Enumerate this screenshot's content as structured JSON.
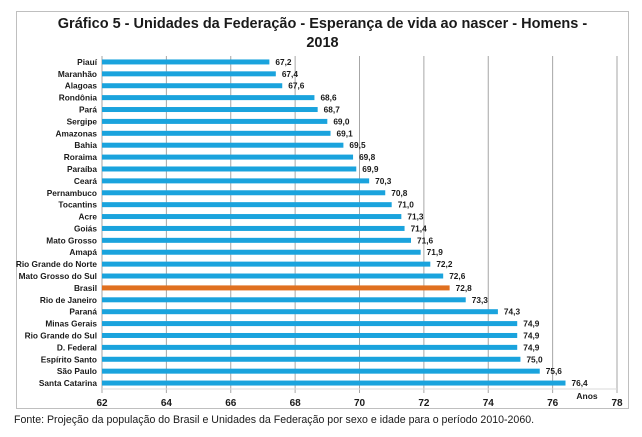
{
  "chart_data": {
    "type": "bar",
    "orientation": "horizontal",
    "title": "Gráfico 5 - Unidades da Federação - Esperança de vida ao nascer - Homens - 2018",
    "title_lines": [
      "Gráfico 5 - Unidades da Federação - Esperança de vida ao nascer - Homens -",
      "2018"
    ],
    "xlabel": "Anos",
    "ylabel": "",
    "xlim": [
      62,
      78
    ],
    "xticks": [
      62,
      64,
      66,
      68,
      70,
      72,
      74,
      76,
      78
    ],
    "xtick_labels": [
      "62",
      "64",
      "66",
      "68",
      "70",
      "72",
      "74",
      "76",
      "78"
    ],
    "grid": "vertical",
    "legend": "none",
    "categories": [
      "Piauí",
      "Maranhão",
      "Alagoas",
      "Rondônia",
      "Pará",
      "Sergipe",
      "Amazonas",
      "Bahia",
      "Roraima",
      "Paraíba",
      "Ceará",
      "Pernambuco",
      "Tocantins",
      "Acre",
      "Goiás",
      "Mato Grosso",
      "Amapá",
      "Rio Grande do Norte",
      "Mato Grosso do Sul",
      "Brasil",
      "Rio de Janeiro",
      "Paraná",
      "Minas Gerais",
      "Rio Grande do Sul",
      "D. Federal",
      "Espírito Santo",
      "São Paulo",
      "Santa Catarina"
    ],
    "values": [
      67.2,
      67.4,
      67.6,
      68.6,
      68.7,
      69.0,
      69.1,
      69.5,
      69.8,
      69.9,
      70.3,
      70.8,
      71.0,
      71.3,
      71.4,
      71.6,
      71.9,
      72.2,
      72.6,
      72.8,
      73.3,
      74.3,
      74.9,
      74.9,
      74.9,
      75.0,
      75.6,
      76.4
    ],
    "value_labels": [
      "67,2",
      "67,4",
      "67,6",
      "68,6",
      "68,7",
      "69,0",
      "69,1",
      "69,5",
      "69,8",
      "69,9",
      "70,3",
      "70,8",
      "71,0",
      "71,3",
      "71,4",
      "71,6",
      "71,9",
      "72,2",
      "72,6",
      "72,8",
      "73,3",
      "74,3",
      "74,9",
      "74,9",
      "74,9",
      "75,0",
      "75,6",
      "76,4"
    ],
    "highlight_category": "Brasil",
    "colors": {
      "bar": "#1aa3dd",
      "highlight": "#e07020",
      "grid": "#a6a6a6",
      "frame": "#bfbfbf"
    }
  },
  "footer": {
    "source": "Fonte: Projeção da população do Brasil e Unidades da Federação por sexo e idade para o período 2010-2060."
  }
}
